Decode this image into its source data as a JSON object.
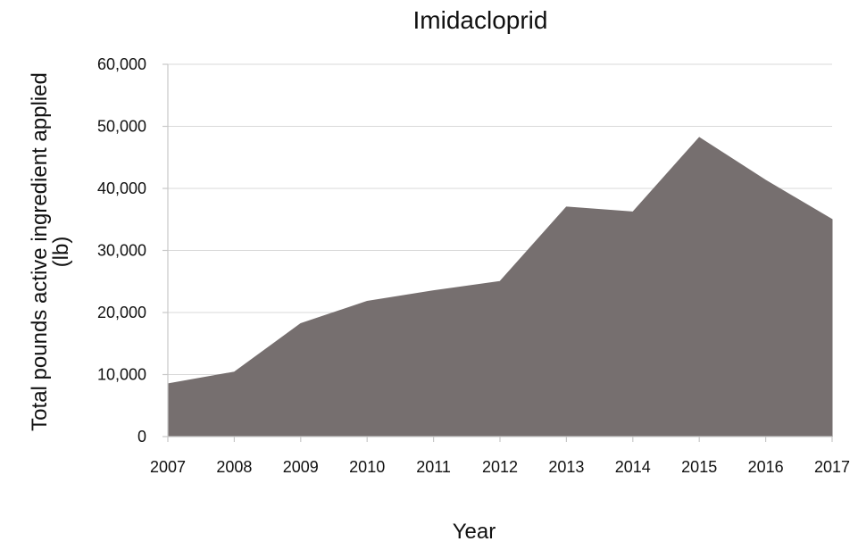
{
  "chart_data": {
    "type": "area",
    "title": "Imidacloprid",
    "xlabel": "Year",
    "ylabel_lines": [
      "Total pounds active ingredient applied",
      "(lb)"
    ],
    "x": [
      "2007",
      "2008",
      "2009",
      "2010",
      "2011",
      "2012",
      "2013",
      "2014",
      "2015",
      "2016",
      "2017"
    ],
    "series": [
      {
        "values": [
          8500,
          10400,
          18200,
          21800,
          23500,
          25000,
          37000,
          36200,
          48200,
          41300,
          35000
        ]
      }
    ],
    "ylim": [
      0,
      60000
    ],
    "y_ticks": [
      0,
      10000,
      20000,
      30000,
      40000,
      50000,
      60000
    ],
    "y_tick_labels": [
      "0",
      "10,000",
      "20,000",
      "30,000",
      "40,000",
      "50,000",
      "60,000"
    ],
    "grid": true,
    "colors": {
      "area": "#766f6f",
      "grid": "#d9d9d9",
      "axis": "#c8c8c8",
      "text": "#111111"
    }
  }
}
